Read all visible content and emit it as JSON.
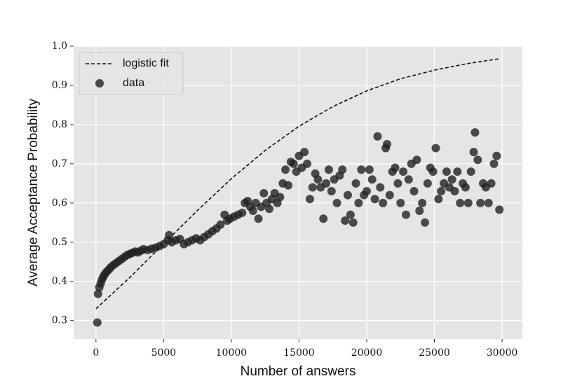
{
  "chart_data": {
    "type": "scatter",
    "xlabel": "Number of answers",
    "ylabel": "Average Acceptance Probability",
    "xlim": [
      -1650,
      31500
    ],
    "ylim": [
      0.253,
      1.0
    ],
    "xticks": [
      0,
      5000,
      10000,
      15000,
      20000,
      25000,
      30000
    ],
    "yticks": [
      0.3,
      0.4,
      0.5,
      0.6,
      0.7,
      0.8,
      0.9,
      {
        "value": 1,
        "label": "1.0"
      }
    ],
    "grid": true,
    "background": "#e5e5e5",
    "legend": "upper left",
    "series": [
      {
        "name": "logistic fit",
        "kind": "line",
        "dash": true,
        "color": "#111111",
        "x": [
          0,
          2500,
          5000,
          7500,
          10000,
          12500,
          15000,
          17500,
          20000,
          22500,
          25000,
          27500,
          29800
        ],
        "values": [
          0.33,
          0.41,
          0.496,
          0.581,
          0.662,
          0.734,
          0.796,
          0.846,
          0.886,
          0.917,
          0.939,
          0.956,
          0.968
        ]
      },
      {
        "name": "data",
        "kind": "points",
        "color": "#222222",
        "x": [
          100,
          150,
          250,
          350,
          450,
          550,
          650,
          800,
          950,
          1100,
          1300,
          1500,
          1700,
          1900,
          2100,
          2300,
          2500,
          2700,
          2900,
          3100,
          3300,
          3500,
          3800,
          4100,
          4400,
          4700,
          5000,
          5300,
          5400,
          5600,
          5900,
          6200,
          6500,
          6800,
          7100,
          7400,
          7700,
          8000,
          8300,
          8600,
          8900,
          9200,
          9500,
          9700,
          9900,
          10200,
          10500,
          10800,
          11000,
          11200,
          11400,
          11600,
          11800,
          12000,
          12200,
          12400,
          12600,
          12800,
          13000,
          13200,
          13400,
          13600,
          13800,
          14000,
          14200,
          14400,
          14600,
          14800,
          15000,
          15200,
          15400,
          15600,
          15800,
          16000,
          16200,
          16400,
          16600,
          16800,
          17000,
          17200,
          17400,
          17600,
          17800,
          18000,
          18200,
          18400,
          18600,
          18800,
          19000,
          19200,
          19400,
          19600,
          19800,
          20000,
          20200,
          20400,
          20600,
          20800,
          21000,
          21200,
          21400,
          21500,
          21700,
          21900,
          22100,
          22300,
          22500,
          22700,
          22900,
          23100,
          23300,
          23500,
          23700,
          23900,
          24100,
          24300,
          24500,
          24700,
          24900,
          25100,
          25300,
          25500,
          25700,
          25900,
          26100,
          26300,
          26500,
          26700,
          26900,
          27100,
          27300,
          27500,
          27700,
          27900,
          28000,
          28200,
          28400,
          28600,
          28800,
          29000,
          29200,
          29400,
          29600,
          29800
        ],
        "values": [
          0.295,
          0.368,
          0.385,
          0.395,
          0.405,
          0.412,
          0.418,
          0.425,
          0.43,
          0.436,
          0.442,
          0.447,
          0.452,
          0.457,
          0.462,
          0.467,
          0.47,
          0.473,
          0.476,
          0.474,
          0.478,
          0.482,
          0.48,
          0.483,
          0.486,
          0.49,
          0.495,
          0.505,
          0.518,
          0.5,
          0.505,
          0.508,
          0.495,
          0.5,
          0.505,
          0.51,
          0.505,
          0.513,
          0.52,
          0.528,
          0.535,
          0.545,
          0.57,
          0.555,
          0.56,
          0.565,
          0.57,
          0.575,
          0.6,
          0.605,
          0.59,
          0.58,
          0.6,
          0.56,
          0.59,
          0.625,
          0.6,
          0.585,
          0.61,
          0.625,
          0.6,
          0.615,
          0.65,
          0.685,
          0.645,
          0.705,
          0.7,
          0.68,
          0.72,
          0.69,
          0.73,
          0.7,
          0.61,
          0.64,
          0.675,
          0.66,
          0.64,
          0.56,
          0.65,
          0.685,
          0.63,
          0.66,
          0.6,
          0.67,
          0.685,
          0.555,
          0.62,
          0.57,
          0.55,
          0.65,
          0.6,
          0.685,
          0.62,
          0.63,
          0.685,
          0.66,
          0.61,
          0.77,
          0.64,
          0.6,
          0.74,
          0.75,
          0.62,
          0.68,
          0.69,
          0.65,
          0.6,
          0.68,
          0.57,
          0.66,
          0.7,
          0.63,
          0.71,
          0.58,
          0.6,
          0.55,
          0.65,
          0.69,
          0.68,
          0.74,
          0.61,
          0.63,
          0.65,
          0.68,
          0.64,
          0.66,
          0.63,
          0.68,
          0.6,
          0.65,
          0.64,
          0.6,
          0.68,
          0.73,
          0.78,
          0.71,
          0.6,
          0.65,
          0.64,
          0.6,
          0.65,
          0.7,
          0.72,
          0.583
        ]
      }
    ]
  }
}
